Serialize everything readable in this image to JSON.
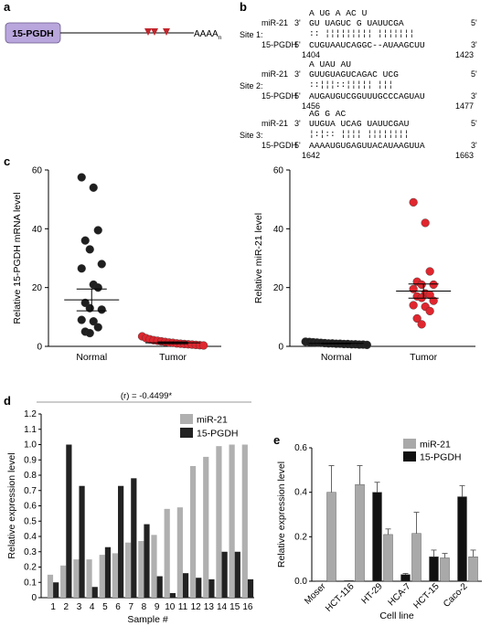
{
  "panel_a": {
    "label": "a",
    "gene_box": "15-PGDH",
    "polya": "AAAA",
    "polya_sub": "n",
    "site_color": "#c0262d",
    "box_color": "#b9a6dc"
  },
  "panel_b": {
    "label": "b",
    "sites": [
      {
        "name": "Site 1:",
        "mir_name": "miR-21",
        "target_name": "15-PGDH",
        "mir_3": "3'",
        "mir_5": "5'",
        "t_5": "5'",
        "t_3": "3'",
        "loops": "A    UG      A   AC        U",
        "mir_seq": "GU    UAGUC  G   UAUUCGA",
        "pair_marks": ":: ¦¦¦¦¦¦¦¦¦   ¦¦¦¦¦¦¦",
        "target_seq": "CUGUAAUCAGGC--AUAAGCUU",
        "start": "1404",
        "end": "1423"
      },
      {
        "name": "Site 2:",
        "mir_name": "miR-21",
        "target_name": "15-PGDH",
        "mir_3": "3'",
        "mir_5": "5'",
        "t_5": "5'",
        "t_3": "3'",
        "loops": "A              UAU    AU",
        "mir_seq": "GUUGUAGUCAGAC   UCG",
        "pair_marks": "::¦¦¦::¦¦¦¦¦   ¦¦¦",
        "target_seq": "AUGAUGUCGGUUUGCCCAGUAU",
        "start": "1456",
        "end": "1477"
      },
      {
        "name": "Site 3:",
        "mir_name": "miR-21",
        "target_name": "15-PGDH",
        "mir_3": "3'",
        "mir_5": "5'",
        "t_5": "5'",
        "t_3": "3'",
        "loops": "AG       G        AC",
        "mir_seq": "UUGUA  UCAG   UAUUCGAU",
        "pair_marks": "¦:¦::  ¦¦¦¦   ¦¦¦¦¦¦¦¦",
        "target_seq": "AAAAUGUGAGUUACAUAAGUUA",
        "start": "1642",
        "end": "1663"
      }
    ]
  },
  "panel_c": {
    "label": "c"
  },
  "panel_d": {
    "label": "d",
    "correlation": "(r) = -0.4499*"
  },
  "panel_e": {
    "label": "e"
  },
  "colors": {
    "normal_dot": "#1f1f1f",
    "tumor_dot": "#e0262e",
    "mir21_bar": "#b0b0b0",
    "pgdh_bar": "#222222"
  },
  "chart_data": [
    {
      "id": "c-left",
      "type": "scatter",
      "title": "",
      "xlabel": "",
      "ylabel": "Relative 15-PGDH mRNA level",
      "ylim": [
        0,
        60
      ],
      "yticks": [
        "0",
        "20",
        "40",
        "60"
      ],
      "categories": [
        "Normal",
        "Tumor"
      ],
      "mean_sem": [
        [
          15.8,
          3.7
        ],
        [
          1.2,
          0.3
        ]
      ],
      "series": [
        {
          "name": "Normal",
          "color": "#1f1f1f",
          "values": [
            57.5,
            54,
            39.5,
            36,
            33,
            28,
            26.5,
            21,
            20,
            14.8,
            13,
            12.5,
            9,
            8.5,
            6.5,
            5,
            4.5
          ]
        },
        {
          "name": "Tumor",
          "color": "#e0262e",
          "values": [
            3.4,
            2.8,
            2.4,
            2.1,
            1.9,
            1.7,
            1.5,
            1.3,
            1.2,
            1.0,
            0.9,
            0.8,
            0.7,
            0.6,
            0.5,
            0.4,
            0.3
          ]
        }
      ],
      "grid": false
    },
    {
      "id": "c-right",
      "type": "scatter",
      "title": "",
      "xlabel": "",
      "ylabel": "Relative miR-21 level",
      "ylim": [
        0,
        60
      ],
      "yticks": [
        "0",
        "20",
        "40",
        "60"
      ],
      "categories": [
        "Normal",
        "Tumor"
      ],
      "mean_sem": [
        [
          1.0,
          0.1
        ],
        [
          18.8,
          2.4
        ]
      ],
      "series": [
        {
          "name": "Normal",
          "color": "#1f1f1f",
          "values": [
            1.6,
            1.5,
            1.4,
            1.3,
            1.2,
            1.1,
            1.0,
            1.0,
            0.9,
            0.9,
            0.8,
            0.8,
            0.7,
            0.7,
            0.6,
            0.6,
            0.5
          ]
        },
        {
          "name": "Tumor",
          "color": "#e0262e",
          "values": [
            49,
            42,
            25.5,
            22,
            21,
            21,
            19.5,
            18,
            17.5,
            17,
            16.5,
            15.5,
            14,
            13.5,
            12,
            9.5,
            7.5
          ]
        }
      ],
      "grid": false
    },
    {
      "id": "d",
      "type": "bar",
      "title": "",
      "xlabel": "Sample #",
      "ylabel": "Relative expression level",
      "ylim": [
        0,
        1.2
      ],
      "yticks": [
        "0",
        "0.1",
        "0.2",
        "0.3",
        "0.4",
        "0.5",
        "0.6",
        "0.7",
        "0.8",
        "0.9",
        "1.0",
        "1.1",
        "1.2"
      ],
      "categories": [
        "1",
        "2",
        "3",
        "4",
        "5",
        "6",
        "7",
        "8",
        "9",
        "10",
        "11",
        "12",
        "13",
        "14",
        "15",
        "16"
      ],
      "series": [
        {
          "name": "miR-21",
          "color": "#b0b0b0",
          "values": [
            0.15,
            0.21,
            0.25,
            0.25,
            0.28,
            0.29,
            0.36,
            0.37,
            0.41,
            0.58,
            0.59,
            0.86,
            0.92,
            0.99,
            1.0,
            1.0
          ]
        },
        {
          "name": "15-PGDH",
          "color": "#222222",
          "values": [
            0.1,
            1.0,
            0.73,
            0.07,
            0.33,
            0.73,
            0.78,
            0.48,
            0.14,
            0.03,
            0.16,
            0.13,
            0.12,
            0.3,
            0.3,
            0.12
          ]
        }
      ],
      "legend": "top-right",
      "grid": false
    },
    {
      "id": "e",
      "type": "bar",
      "title": "",
      "xlabel": "Cell line",
      "ylabel": "Relative expression level",
      "ylim": [
        0,
        0.6
      ],
      "yticks": [
        "0.0",
        "0.2",
        "0.4",
        "0.6"
      ],
      "categories": [
        "Moser",
        "HCT-116",
        "HT-29",
        "HCA-7",
        "HCT-15",
        "Caco-2"
      ],
      "series": [
        {
          "name": "15-PGDH",
          "color": "#111111",
          "values": [
            0.002,
            0.003,
            0.4,
            0.03,
            0.11,
            0.38
          ],
          "errors": [
            0.0,
            0.0,
            0.045,
            0.005,
            0.03,
            0.05
          ]
        },
        {
          "name": "miR-21",
          "color": "#a9a9a9",
          "values": [
            0.4,
            0.435,
            0.21,
            0.215,
            0.105,
            0.11
          ],
          "errors": [
            0.12,
            0.085,
            0.025,
            0.095,
            0.02,
            0.03
          ]
        }
      ],
      "legend_order": [
        "miR-21",
        "15-PGDH"
      ],
      "legend": "top-right",
      "grid": false
    }
  ]
}
